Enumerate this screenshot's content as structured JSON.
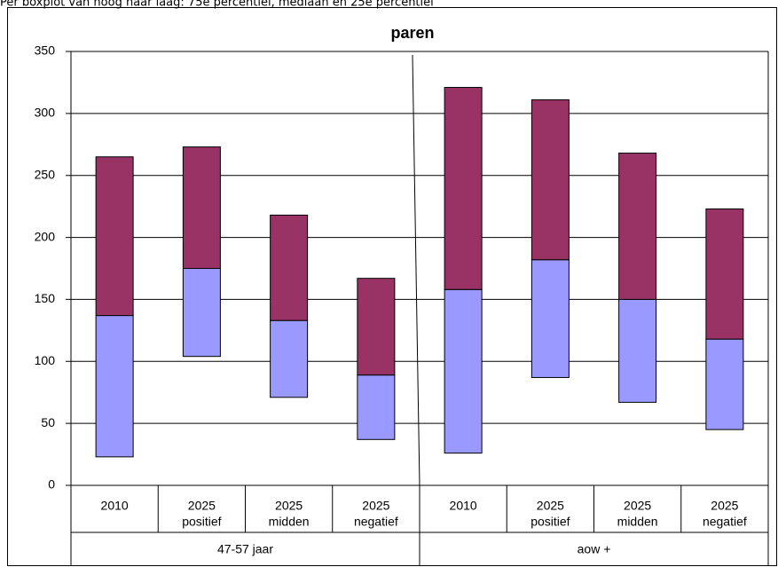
{
  "chart_data": {
    "type": "boxplot",
    "caption": "Per boxplot van hoog naar laag: 75e percentiel, mediaan en 25e percentiel",
    "title": "paren",
    "ylim": [
      0,
      350
    ],
    "yticks": [
      0,
      50,
      100,
      150,
      200,
      250,
      300,
      350
    ],
    "grid": true,
    "upper_color": "#993366",
    "lower_color": "#9999ff",
    "groups": [
      {
        "name": "47-57 jaar",
        "categories": [
          [
            "2010"
          ],
          [
            "2025",
            "positief"
          ],
          [
            "2025",
            "midden"
          ],
          [
            "2025",
            "negatief"
          ]
        ],
        "q1": [
          23,
          104,
          71,
          37
        ],
        "median": [
          137,
          175,
          133,
          89
        ],
        "q3": [
          265,
          273,
          218,
          167
        ]
      },
      {
        "name": "aow +",
        "categories": [
          [
            "2010"
          ],
          [
            "2025",
            "positief"
          ],
          [
            "2025",
            "midden"
          ],
          [
            "2025",
            "negatief"
          ]
        ],
        "q1": [
          26,
          87,
          67,
          45
        ],
        "median": [
          158,
          182,
          150,
          118
        ],
        "q3": [
          321,
          311,
          268,
          223
        ]
      }
    ]
  }
}
